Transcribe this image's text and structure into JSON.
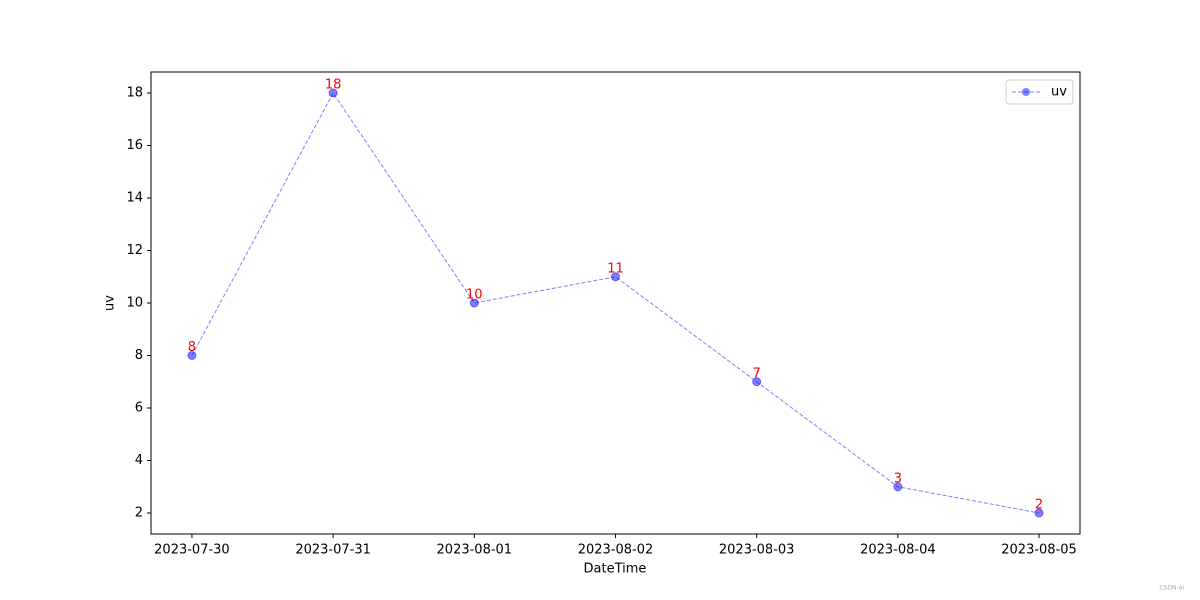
{
  "chart_data": {
    "type": "line",
    "x": [
      "2023-07-30",
      "2023-07-31",
      "2023-08-01",
      "2023-08-02",
      "2023-08-03",
      "2023-08-04",
      "2023-08-05"
    ],
    "series": [
      {
        "name": "uv",
        "color": "#0000ff",
        "values": [
          8,
          18,
          10,
          11,
          7,
          3,
          2
        ]
      }
    ],
    "label_color": "#ff0000",
    "xlabel": "DateTime",
    "ylabel": "uv",
    "ylim": [
      1.2,
      18.8
    ],
    "yticks": [
      2,
      4,
      6,
      8,
      10,
      12,
      14,
      16,
      18
    ],
    "legend": "upper right",
    "watermark": "CSDN-ai"
  }
}
